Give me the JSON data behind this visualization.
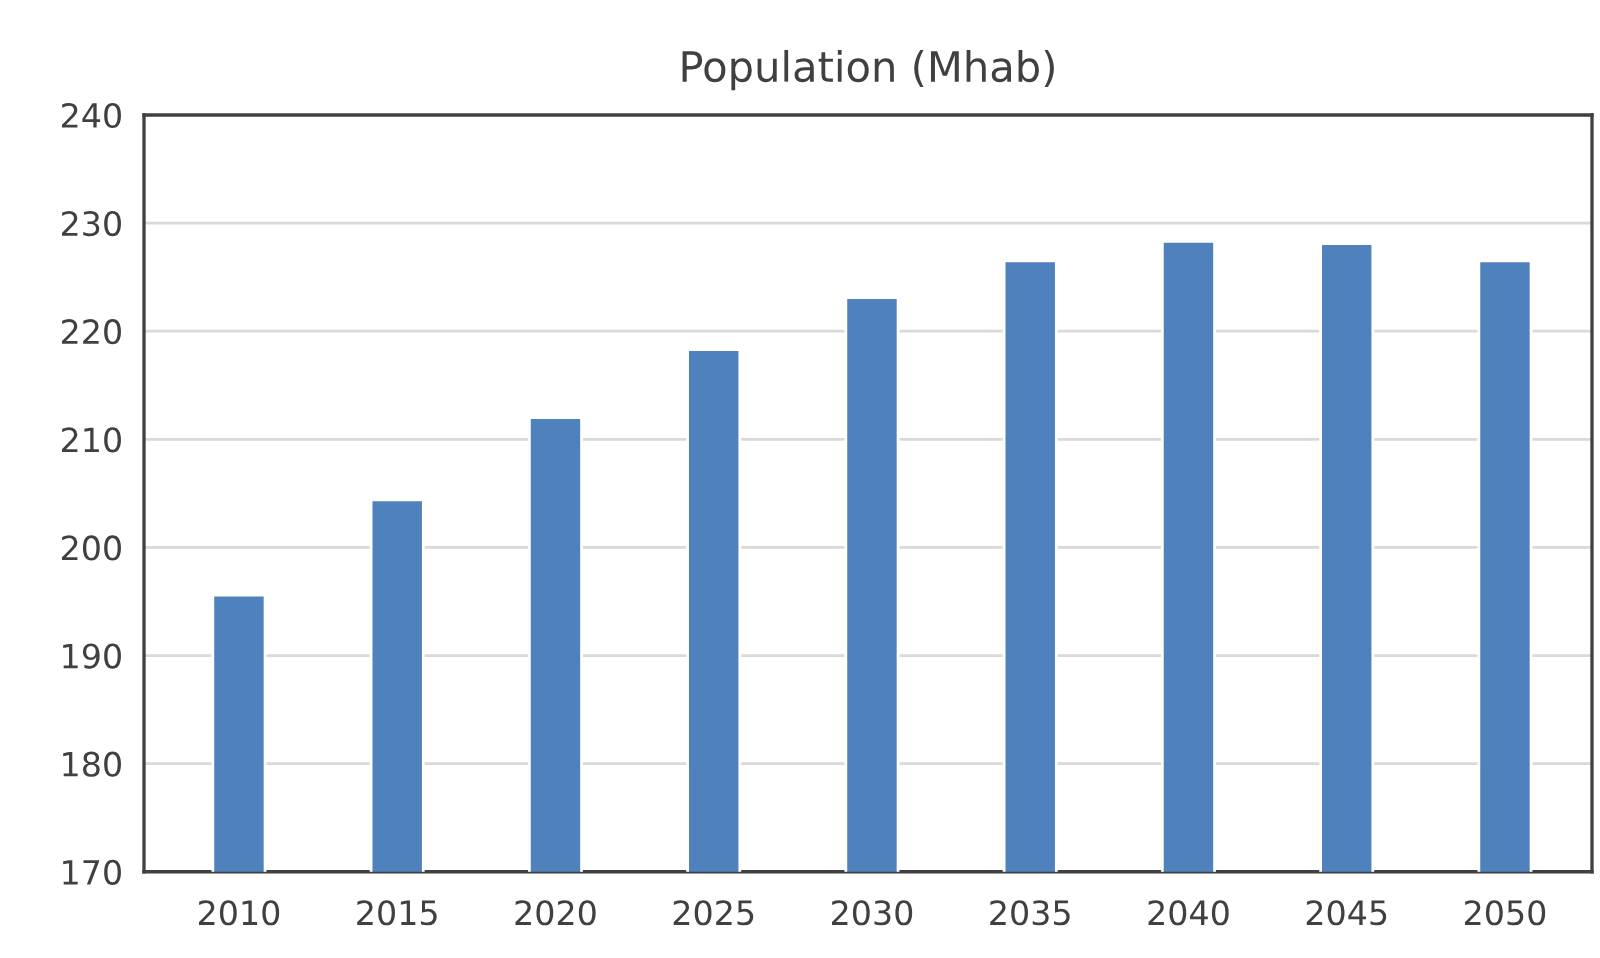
{
  "chart_data": {
    "type": "bar",
    "title": "Population (Mhab)",
    "categories": [
      "2010",
      "2015",
      "2020",
      "2025",
      "2030",
      "2035",
      "2040",
      "2045",
      "2050"
    ],
    "values": [
      195.6,
      204.4,
      212.0,
      218.3,
      223.1,
      226.5,
      228.3,
      228.1,
      226.5
    ],
    "color": "#4f81bd",
    "ylim": [
      170,
      240
    ],
    "yticks": [
      170,
      180,
      190,
      200,
      210,
      220,
      230,
      240
    ],
    "grid": "y",
    "legend": false
  }
}
